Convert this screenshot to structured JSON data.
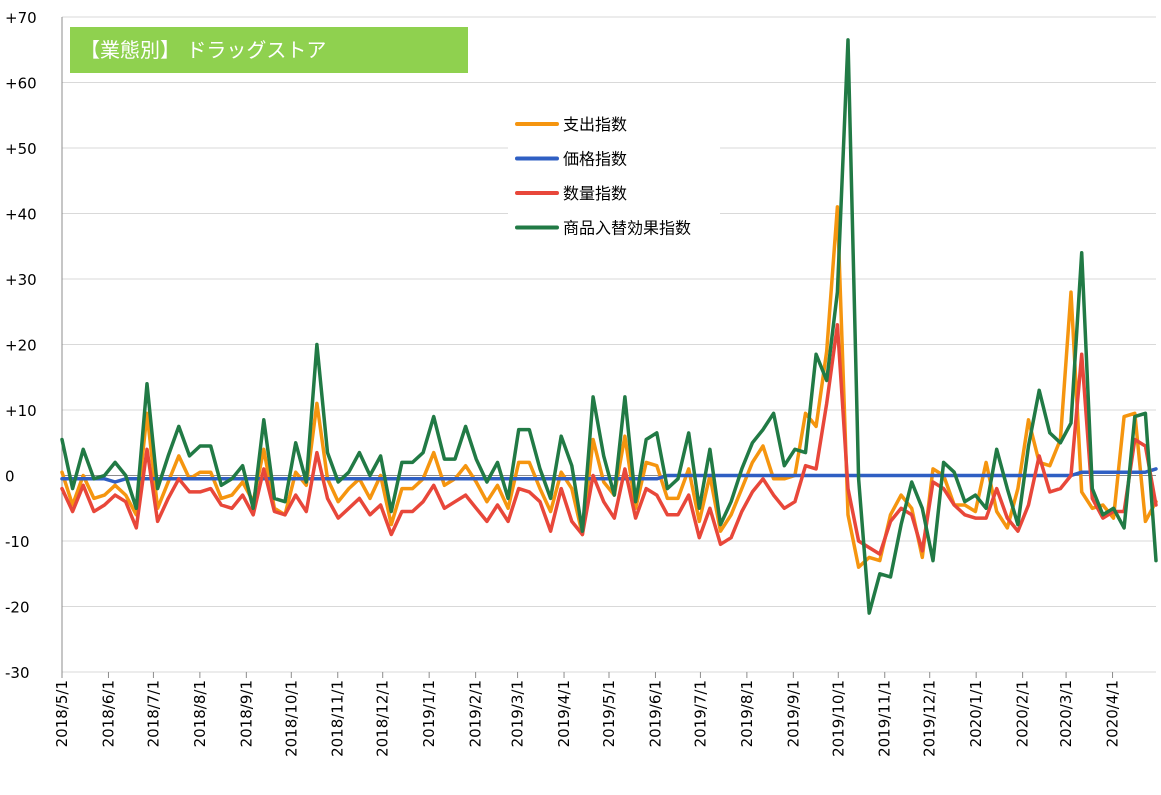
{
  "chart_data": {
    "type": "line",
    "title": "【業態別】 ドラッグストア",
    "yticks": [
      "+70",
      "+60",
      "+50",
      "+40",
      "+30",
      "+20",
      "+10",
      "0",
      "-10",
      "-20",
      "-30"
    ],
    "ylim": [
      -30,
      70
    ],
    "grid": "horizontal",
    "legend_position": "center-top",
    "xlabels": [
      "2018/5/1",
      "2018/6/1",
      "2018/7/1",
      "2018/8/1",
      "2018/9/1",
      "2018/10/1",
      "2018/11/1",
      "2018/12/1",
      "2019/1/1",
      "2019/2/1",
      "2019/3/1",
      "2019/4/1",
      "2019/5/1",
      "2019/6/1",
      "2019/7/1",
      "2019/8/1",
      "2019/9/1",
      "2019/10/1",
      "2019/11/1",
      "2019/12/1",
      "2020/1/1",
      "2020/2/1",
      "2020/3/1",
      "2020/4/1"
    ],
    "x_start": "2018-05-01",
    "x_end": "2020-04-30",
    "series": [
      {
        "name": "支出指数",
        "color": "#f5950f",
        "values": [
          0.5,
          -4.5,
          0.0,
          -3.5,
          -3.0,
          -1.5,
          -3.0,
          -6.0,
          9.5,
          -5.0,
          -1.0,
          3.0,
          -0.5,
          0.5,
          0.5,
          -3.5,
          -3.0,
          -1.0,
          -4.0,
          4.0,
          -5.0,
          -6.0,
          0.5,
          -1.5,
          11.0,
          -0.5,
          -4.0,
          -2.0,
          -0.5,
          -3.5,
          0.0,
          -7.5,
          -2.0,
          -2.0,
          -0.5,
          3.5,
          -1.5,
          -0.5,
          1.5,
          -1.0,
          -4.0,
          -1.5,
          -5.0,
          2.0,
          2.0,
          -2.0,
          -5.5,
          0.5,
          -2.0,
          -9.0,
          5.5,
          -1.0,
          -3.0,
          6.0,
          -5.0,
          2.0,
          1.5,
          -3.5,
          -3.5,
          1.0,
          -7.0,
          0.0,
          -8.5,
          -6.0,
          -2.0,
          2.0,
          4.5,
          -0.5,
          -0.5,
          0.0,
          9.5,
          7.5,
          19.0,
          41.0,
          -6.0,
          -14.0,
          -12.5,
          -13.0,
          -6.0,
          -3.0,
          -5.0,
          -12.5,
          1.0,
          0.0,
          -4.5,
          -4.5,
          -5.5,
          2.0,
          -5.5,
          -8.0,
          -2.0,
          8.5,
          2.0,
          1.5,
          5.5,
          28.0,
          -2.5,
          -5.0,
          -4.5,
          -6.5,
          9.0,
          9.5,
          -7.0,
          -4.0
        ]
      },
      {
        "name": "価格指数",
        "color": "#2f5fc3",
        "values": [
          -0.5,
          -0.5,
          -0.5,
          -0.5,
          -0.5,
          -1.0,
          -0.5,
          -0.5,
          -0.5,
          -0.5,
          -0.5,
          -0.5,
          -0.5,
          -0.5,
          -0.5,
          -0.5,
          -0.5,
          -0.5,
          -0.5,
          -0.5,
          -0.5,
          -0.5,
          -0.5,
          -0.5,
          -0.5,
          -0.5,
          -0.5,
          -0.5,
          -0.5,
          -0.5,
          -0.5,
          -0.5,
          -0.5,
          -0.5,
          -0.5,
          -0.5,
          -0.5,
          -0.5,
          -0.5,
          -0.5,
          -0.5,
          -0.5,
          -0.5,
          -0.5,
          -0.5,
          -0.5,
          -0.5,
          -0.5,
          -0.5,
          -0.5,
          -0.5,
          -0.5,
          -0.5,
          -0.5,
          -0.5,
          -0.5,
          -0.5,
          0.0,
          0.0,
          0.0,
          0.0,
          0.0,
          0.0,
          0.0,
          0.0,
          0.0,
          0.0,
          0.0,
          0.0,
          0.0,
          0.0,
          0.0,
          0.0,
          0.0,
          0.0,
          0.0,
          0.0,
          0.0,
          0.0,
          0.0,
          0.0,
          0.0,
          0.0,
          0.0,
          0.0,
          0.0,
          0.0,
          0.0,
          0.0,
          0.0,
          0.0,
          0.0,
          0.0,
          0.0,
          0.0,
          0.0,
          0.5,
          0.5,
          0.5,
          0.5,
          0.5,
          0.5,
          0.5,
          1.0
        ]
      },
      {
        "name": "数量指数",
        "color": "#e8473a",
        "values": [
          -2.0,
          -5.5,
          -1.5,
          -5.5,
          -4.5,
          -3.0,
          -4.0,
          -8.0,
          4.0,
          -7.0,
          -3.5,
          -0.5,
          -2.5,
          -2.5,
          -2.0,
          -4.5,
          -5.0,
          -3.0,
          -6.0,
          1.0,
          -5.5,
          -6.0,
          -3.0,
          -5.5,
          3.5,
          -3.5,
          -6.5,
          -5.0,
          -3.5,
          -6.0,
          -4.5,
          -9.0,
          -5.5,
          -5.5,
          -4.0,
          -1.5,
          -5.0,
          -4.0,
          -3.0,
          -5.0,
          -7.0,
          -4.5,
          -7.0,
          -2.0,
          -2.5,
          -4.0,
          -8.5,
          -2.0,
          -7.0,
          -9.0,
          0.0,
          -4.0,
          -6.5,
          1.0,
          -6.5,
          -2.0,
          -3.0,
          -6.0,
          -6.0,
          -3.0,
          -9.5,
          -5.0,
          -10.5,
          -9.5,
          -5.5,
          -2.5,
          -0.5,
          -3.0,
          -5.0,
          -4.0,
          1.5,
          1.0,
          11.0,
          23.0,
          -2.0,
          -10.0,
          -11.0,
          -12.0,
          -7.0,
          -5.0,
          -6.0,
          -11.5,
          -1.0,
          -2.0,
          -4.5,
          -6.0,
          -6.5,
          -6.5,
          -2.0,
          -6.5,
          -8.5,
          -4.5,
          3.0,
          -2.5,
          -2.0,
          0.0,
          18.5,
          -3.5,
          -6.5,
          -5.5,
          -5.5,
          5.5,
          4.5,
          -4.5
        ]
      },
      {
        "name": "商品入替効果指数",
        "color": "#217a45",
        "values": [
          5.5,
          -2.0,
          4.0,
          -0.5,
          0.0,
          2.0,
          0.0,
          -5.0,
          14.0,
          -2.0,
          3.0,
          7.5,
          3.0,
          4.5,
          4.5,
          -1.5,
          -0.5,
          1.5,
          -5.0,
          8.5,
          -3.5,
          -4.0,
          5.0,
          -1.0,
          20.0,
          3.5,
          -1.0,
          0.5,
          3.5,
          0.0,
          3.0,
          -5.5,
          2.0,
          2.0,
          3.5,
          9.0,
          2.5,
          2.5,
          7.5,
          2.5,
          -1.0,
          2.0,
          -3.5,
          7.0,
          7.0,
          1.0,
          -3.5,
          6.0,
          1.5,
          -8.5,
          12.0,
          3.0,
          -3.0,
          12.0,
          -4.0,
          5.5,
          6.5,
          -2.0,
          -0.5,
          6.5,
          -5.0,
          4.0,
          -7.5,
          -4.0,
          1.0,
          5.0,
          7.0,
          9.5,
          1.5,
          4.0,
          3.5,
          18.5,
          14.5,
          28.0,
          66.5,
          -0.5,
          -21.0,
          -15.0,
          -15.5,
          -7.5,
          -1.0,
          -5.0,
          -13.0,
          2.0,
          0.5,
          -4.0,
          -3.0,
          -5.0,
          4.0,
          -2.0,
          -7.5,
          4.5,
          13.0,
          6.5,
          5.0,
          8.0,
          34.0,
          -2.0,
          -6.0,
          -5.0,
          -8.0,
          9.0,
          9.5,
          -13.0
        ]
      }
    ]
  }
}
